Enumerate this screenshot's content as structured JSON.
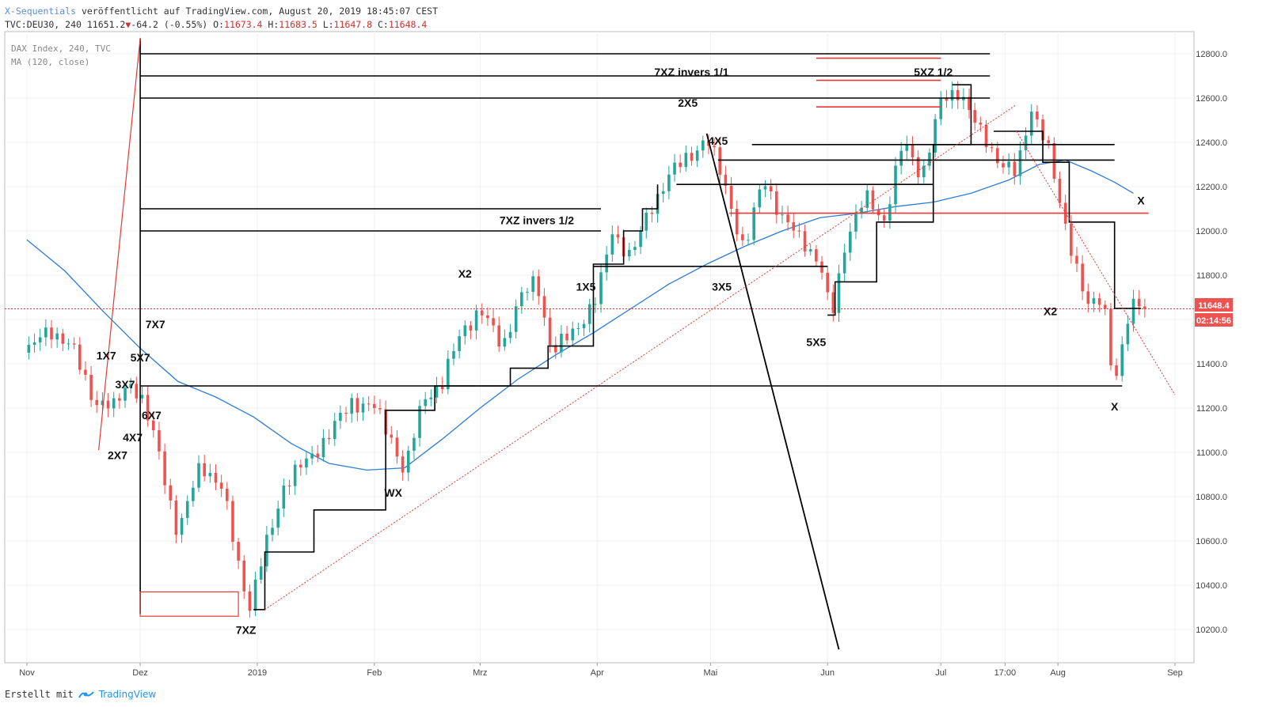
{
  "header": {
    "publisher": "X-Sequentials",
    "published_on": "veröffentlicht auf TradingView.com, August 20, 2019 18:45:07 CEST",
    "symbol_line": "TVC:DEU30, 240",
    "last": "11651.2",
    "change": "-64.2 (-0.55%)",
    "o_label": "O:",
    "o": "11673.4",
    "h_label": "H:",
    "h": "11683.5",
    "l_label": "L:",
    "l": "11647.8",
    "c_label": "C:",
    "c": "11648.4"
  },
  "legend": {
    "instrument": "DAX Index, 240, TVC",
    "indicator": "MA (120, close)"
  },
  "footer": {
    "created_with": "Erstellt mit",
    "brand": "TradingView"
  },
  "price_tag": {
    "value": "11648.4",
    "countdown": "02:14:56"
  },
  "colors": {
    "up": "#26a69a",
    "down": "#ef5350",
    "ma": "#2e7cd6",
    "red_line": "#e53935",
    "black_line": "#000000"
  },
  "chart_data": {
    "type": "line",
    "title": "DAX Index, 240, TVC",
    "ylim": [
      10050,
      12900
    ],
    "y_ticks": [
      10200,
      10400,
      10600,
      10800,
      11000,
      11200,
      11400,
      11600,
      11800,
      12000,
      12200,
      12400,
      12600,
      12800
    ],
    "x_ticks": [
      {
        "label": "Nov",
        "t": 0
      },
      {
        "label": "Dez",
        "t": 30
      },
      {
        "label": "2019",
        "t": 61
      },
      {
        "label": "Feb",
        "t": 92
      },
      {
        "label": "Mrz",
        "t": 120
      },
      {
        "label": "Apr",
        "t": 151
      },
      {
        "label": "Mai",
        "t": 181
      },
      {
        "label": "Jun",
        "t": 212
      },
      {
        "label": "Jul",
        "t": 242
      },
      {
        "label": "17:00",
        "t": 259
      },
      {
        "label": "Aug",
        "t": 273
      },
      {
        "label": "Sep",
        "t": 304
      }
    ],
    "series": [
      {
        "name": "DAX",
        "values": [
          {
            "t": 0,
            "v": 11450
          },
          {
            "t": 6,
            "v": 11560
          },
          {
            "t": 12,
            "v": 11470
          },
          {
            "t": 18,
            "v": 11230
          },
          {
            "t": 23,
            "v": 11200
          },
          {
            "t": 27,
            "v": 11330
          },
          {
            "t": 30,
            "v": 11250
          },
          {
            "t": 35,
            "v": 11000
          },
          {
            "t": 40,
            "v": 10620
          },
          {
            "t": 46,
            "v": 10960
          },
          {
            "t": 52,
            "v": 10820
          },
          {
            "t": 56,
            "v": 10500
          },
          {
            "t": 59,
            "v": 10300
          },
          {
            "t": 63,
            "v": 10560
          },
          {
            "t": 68,
            "v": 10850
          },
          {
            "t": 74,
            "v": 10960
          },
          {
            "t": 80,
            "v": 11080
          },
          {
            "t": 86,
            "v": 11230
          },
          {
            "t": 92,
            "v": 11200
          },
          {
            "t": 97,
            "v": 11050
          },
          {
            "t": 100,
            "v": 10900
          },
          {
            "t": 105,
            "v": 11250
          },
          {
            "t": 110,
            "v": 11310
          },
          {
            "t": 115,
            "v": 11550
          },
          {
            "t": 120,
            "v": 11640
          },
          {
            "t": 126,
            "v": 11480
          },
          {
            "t": 130,
            "v": 11680
          },
          {
            "t": 135,
            "v": 11780
          },
          {
            "t": 139,
            "v": 11450
          },
          {
            "t": 145,
            "v": 11550
          },
          {
            "t": 151,
            "v": 11700
          },
          {
            "t": 155,
            "v": 12000
          },
          {
            "t": 160,
            "v": 11880
          },
          {
            "t": 165,
            "v": 12100
          },
          {
            "t": 170,
            "v": 12250
          },
          {
            "t": 176,
            "v": 12350
          },
          {
            "t": 180,
            "v": 12420
          },
          {
            "t": 185,
            "v": 12200
          },
          {
            "t": 190,
            "v": 11900
          },
          {
            "t": 195,
            "v": 12250
          },
          {
            "t": 200,
            "v": 12050
          },
          {
            "t": 206,
            "v": 11950
          },
          {
            "t": 210,
            "v": 11850
          },
          {
            "t": 213,
            "v": 11600
          },
          {
            "t": 217,
            "v": 11980
          },
          {
            "t": 222,
            "v": 12150
          },
          {
            "t": 227,
            "v": 12050
          },
          {
            "t": 232,
            "v": 12400
          },
          {
            "t": 237,
            "v": 12250
          },
          {
            "t": 242,
            "v": 12580
          },
          {
            "t": 247,
            "v": 12640
          },
          {
            "t": 252,
            "v": 12450
          },
          {
            "t": 257,
            "v": 12330
          },
          {
            "t": 262,
            "v": 12250
          },
          {
            "t": 266,
            "v": 12560
          },
          {
            "t": 270,
            "v": 12400
          },
          {
            "t": 273,
            "v": 12150
          },
          {
            "t": 277,
            "v": 11900
          },
          {
            "t": 281,
            "v": 11650
          },
          {
            "t": 285,
            "v": 11700
          },
          {
            "t": 288,
            "v": 11300
          },
          {
            "t": 291,
            "v": 11560
          },
          {
            "t": 294,
            "v": 11700
          },
          {
            "t": 296,
            "v": 11650
          }
        ]
      },
      {
        "name": "MA (120, close)",
        "values": [
          {
            "t": 0,
            "v": 11960
          },
          {
            "t": 10,
            "v": 11820
          },
          {
            "t": 20,
            "v": 11640
          },
          {
            "t": 30,
            "v": 11470
          },
          {
            "t": 40,
            "v": 11320
          },
          {
            "t": 50,
            "v": 11250
          },
          {
            "t": 60,
            "v": 11160
          },
          {
            "t": 70,
            "v": 11040
          },
          {
            "t": 80,
            "v": 10950
          },
          {
            "t": 90,
            "v": 10920
          },
          {
            "t": 100,
            "v": 10930
          },
          {
            "t": 110,
            "v": 11060
          },
          {
            "t": 120,
            "v": 11200
          },
          {
            "t": 130,
            "v": 11330
          },
          {
            "t": 140,
            "v": 11440
          },
          {
            "t": 150,
            "v": 11540
          },
          {
            "t": 160,
            "v": 11650
          },
          {
            "t": 170,
            "v": 11760
          },
          {
            "t": 180,
            "v": 11850
          },
          {
            "t": 190,
            "v": 11930
          },
          {
            "t": 200,
            "v": 12000
          },
          {
            "t": 210,
            "v": 12060
          },
          {
            "t": 220,
            "v": 12080
          },
          {
            "t": 230,
            "v": 12110
          },
          {
            "t": 240,
            "v": 12130
          },
          {
            "t": 250,
            "v": 12170
          },
          {
            "t": 260,
            "v": 12230
          },
          {
            "t": 268,
            "v": 12300
          },
          {
            "t": 275,
            "v": 12320
          },
          {
            "t": 282,
            "v": 12270
          },
          {
            "t": 288,
            "v": 12220
          },
          {
            "t": 293,
            "v": 12170
          }
        ]
      }
    ],
    "levels_black": [
      12800,
      12700,
      12600,
      12390,
      12320,
      12210,
      12100,
      12000,
      11840,
      11300
    ],
    "levels_red": [
      12780,
      12680,
      12560,
      12080
    ],
    "labels": [
      {
        "text": "7XZ invers 1/1",
        "t": 176,
        "v": 12700
      },
      {
        "text": "5XZ 1/2",
        "t": 240,
        "v": 12700
      },
      {
        "text": "2X5",
        "t": 175,
        "v": 12560
      },
      {
        "text": "4X5",
        "t": 183,
        "v": 12390
      },
      {
        "text": "7XZ invers 1/2",
        "t": 135,
        "v": 12030
      },
      {
        "text": "X",
        "t": 295,
        "v": 12120
      },
      {
        "text": "1X5",
        "t": 148,
        "v": 11730
      },
      {
        "text": "3X5",
        "t": 184,
        "v": 11730
      },
      {
        "text": "X2",
        "t": 116,
        "v": 11790
      },
      {
        "text": "X2",
        "t": 271,
        "v": 11620
      },
      {
        "text": "5X5",
        "t": 209,
        "v": 11480
      },
      {
        "text": "7X7",
        "t": 34,
        "v": 11560
      },
      {
        "text": "1X7",
        "t": 21,
        "v": 11420
      },
      {
        "text": "5X7",
        "t": 30,
        "v": 11410
      },
      {
        "text": "3X7",
        "t": 26,
        "v": 11290
      },
      {
        "text": "6X7",
        "t": 33,
        "v": 11150
      },
      {
        "text": "4X7",
        "t": 28,
        "v": 11050
      },
      {
        "text": "2X7",
        "t": 24,
        "v": 10970
      },
      {
        "text": "X",
        "t": 288,
        "v": 11190
      },
      {
        "text": "WX",
        "t": 97,
        "v": 10800
      },
      {
        "text": "7XZ",
        "t": 58,
        "v": 10180
      }
    ]
  }
}
